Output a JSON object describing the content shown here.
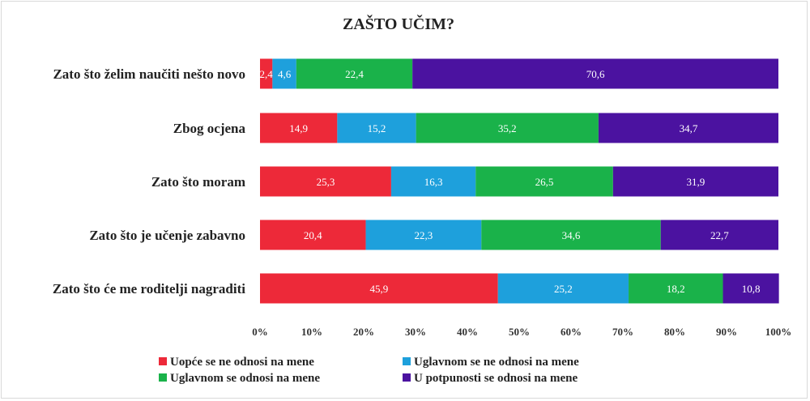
{
  "chart_data": {
    "type": "bar",
    "orientation": "horizontal",
    "stacked": true,
    "title": "ZAŠTO UČIM?",
    "xlabel": "",
    "ylabel": "",
    "xlim": [
      0,
      100
    ],
    "x_ticks": [
      "0%",
      "10%",
      "20%",
      "30%",
      "40%",
      "50%",
      "60%",
      "70%",
      "80%",
      "90%",
      "100%"
    ],
    "categories": [
      "Zato što želim naučiti nešto novo",
      "Zbog ocjena",
      "Zato što moram",
      "Zato što je učenje zabavno",
      "Zato što će me roditelji nagraditi"
    ],
    "series": [
      {
        "name": "Uopće se ne odnosi na mene",
        "color": "#ed2939",
        "values": [
          2.4,
          14.9,
          25.3,
          20.4,
          45.9
        ]
      },
      {
        "name": "Uglavnom se ne odnosi na mene",
        "color": "#1ea0dc",
        "values": [
          4.6,
          15.2,
          16.3,
          22.3,
          25.2
        ]
      },
      {
        "name": "Uglavnom se odnosi na mene",
        "color": "#1ab24a",
        "values": [
          22.4,
          35.2,
          26.5,
          34.6,
          18.2
        ]
      },
      {
        "name": "U potpunosti se odnosi na mene",
        "color": "#4b12a0",
        "values": [
          70.6,
          34.7,
          31.9,
          22.7,
          10.8
        ]
      }
    ],
    "grid": false,
    "legend_position": "bottom"
  }
}
